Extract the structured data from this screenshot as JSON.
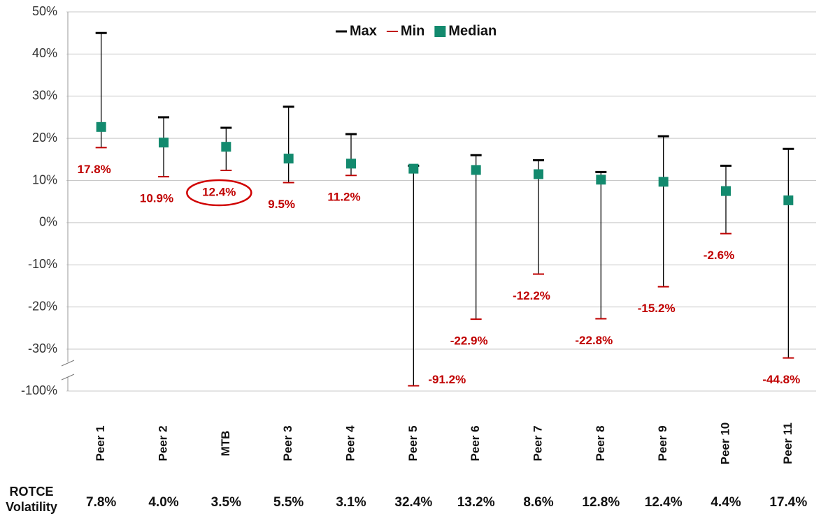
{
  "chart_data": {
    "type": "range",
    "categories": [
      "Peer 1",
      "Peer 2",
      "MTB",
      "Peer 3",
      "Peer 4",
      "Peer 5",
      "Peer 6",
      "Peer 7",
      "Peer 8",
      "Peer 9",
      "Peer 10",
      "Peer 11"
    ],
    "series": [
      {
        "name": "Max",
        "color": "#000000",
        "values": [
          45,
          25,
          22.5,
          27.5,
          21,
          13.5,
          16,
          14.8,
          12,
          20.5,
          13.5,
          17.5
        ]
      },
      {
        "name": "Min",
        "color": "#c00000",
        "values": [
          17.8,
          10.9,
          12.4,
          9.5,
          11.2,
          -91.2,
          -22.9,
          -12.2,
          -22.8,
          -15.2,
          -2.6,
          -44.8
        ],
        "value_labels": [
          "17.8%",
          "10.9%",
          "12.4%",
          "9.5%",
          "11.2%",
          "-91.2%",
          "-22.9%",
          "-12.2%",
          "-22.8%",
          "-15.2%",
          "-2.6%",
          "-44.8%"
        ]
      },
      {
        "name": "Median",
        "color": "#138a6e",
        "values": [
          22.7,
          19,
          18,
          15.2,
          14,
          12.8,
          12.5,
          11.5,
          10.2,
          9.7,
          7.5,
          5.3
        ]
      }
    ],
    "ylim": [
      -100,
      50
    ],
    "yticks": [
      {
        "value": 50,
        "label": "50%"
      },
      {
        "value": 40,
        "label": "40%"
      },
      {
        "value": 30,
        "label": "30%"
      },
      {
        "value": 20,
        "label": "20%"
      },
      {
        "value": 10,
        "label": "10%"
      },
      {
        "value": 0,
        "label": "0%"
      },
      {
        "value": -10,
        "label": "-10%"
      },
      {
        "value": -20,
        "label": "-20%"
      },
      {
        "value": -30,
        "label": "-30%"
      },
      {
        "value": -100,
        "label": "-100%"
      }
    ],
    "axis_break": [
      -30,
      -100
    ],
    "grid": true,
    "legend": "top",
    "highlight": "MTB",
    "volatility": {
      "label": "ROTCE Volatility",
      "values": [
        7.8,
        4.0,
        3.5,
        5.5,
        3.1,
        32.4,
        13.2,
        8.6,
        12.8,
        12.4,
        4.4,
        17.4
      ],
      "value_labels": [
        "7.8%",
        "4.0%",
        "3.5%",
        "5.5%",
        "3.1%",
        "32.4%",
        "13.2%",
        "8.6%",
        "12.8%",
        "12.4%",
        "4.4%",
        "17.4%"
      ]
    }
  }
}
